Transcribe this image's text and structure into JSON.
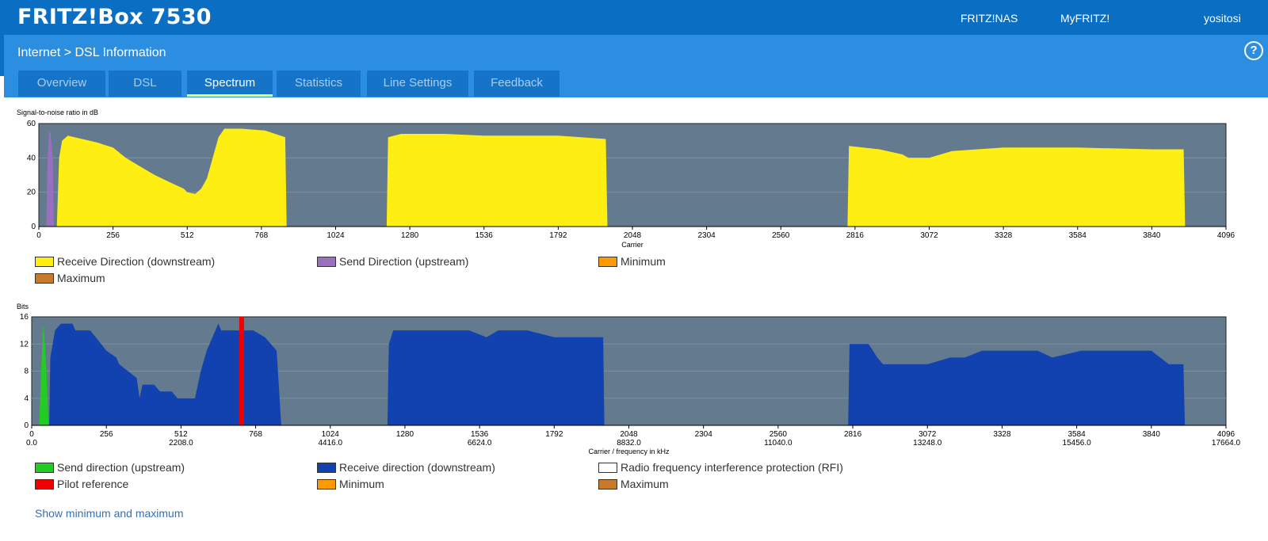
{
  "header": {
    "brand": "FRITZ!Box 7530",
    "links": [
      "FRITZ!NAS",
      "MyFRITZ!",
      "yositosi"
    ],
    "breadcrumb": "Internet > DSL Information",
    "help_icon": "?"
  },
  "tabs": [
    {
      "label": "Overview",
      "active": false
    },
    {
      "label": "DSL",
      "active": false
    },
    {
      "label": "Spectrum",
      "active": true
    },
    {
      "label": "Statistics",
      "active": false
    },
    {
      "label": "Line Settings",
      "active": false
    },
    {
      "label": "Feedback",
      "active": false
    }
  ],
  "colors": {
    "plot_bg": "#637a8f",
    "downstream_snr": "#ffee11",
    "upstream_snr": "#9b6fc0",
    "downstream_bits": "#1242b0",
    "upstream_bits": "#22cc22",
    "pilot": "#ee0000",
    "minimum": "#ff9900",
    "maximum": "#c87a2a"
  },
  "chart_data": [
    {
      "type": "area",
      "ylabel": "Signal-to-noise ratio in dB",
      "xlabel": "Carrier",
      "xlim": [
        0,
        4096
      ],
      "ylim": [
        0,
        60
      ],
      "y_ticks": [
        0,
        20,
        40,
        60
      ],
      "x_ticks": [
        0,
        256,
        512,
        768,
        1024,
        1280,
        1536,
        1792,
        2048,
        2304,
        2560,
        2816,
        3072,
        3328,
        3584,
        3840,
        4096
      ],
      "series": [
        {
          "name": "Send Direction (upstream)",
          "color": "#9b6fc0",
          "points": [
            [
              26,
              0
            ],
            [
              30,
              40
            ],
            [
              36,
              55
            ],
            [
              40,
              55
            ],
            [
              48,
              40
            ],
            [
              52,
              0
            ]
          ]
        },
        {
          "name": "Receive Direction (downstream)",
          "color": "#ffee11",
          "points": [
            [
              62,
              0
            ],
            [
              70,
              40
            ],
            [
              80,
              50
            ],
            [
              100,
              53
            ],
            [
              150,
              51
            ],
            [
              200,
              49
            ],
            [
              256,
              46
            ],
            [
              300,
              40
            ],
            [
              350,
              35
            ],
            [
              400,
              30
            ],
            [
              450,
              26
            ],
            [
              500,
              22
            ],
            [
              512,
              20
            ],
            [
              540,
              19
            ],
            [
              560,
              22
            ],
            [
              580,
              28
            ],
            [
              600,
              40
            ],
            [
              620,
              52
            ],
            [
              640,
              57
            ],
            [
              700,
              57
            ],
            [
              780,
              56
            ],
            [
              850,
              52
            ],
            [
              855,
              0
            ],
            [
              1200,
              0
            ],
            [
              1205,
              52
            ],
            [
              1250,
              54
            ],
            [
              1400,
              54
            ],
            [
              1536,
              53
            ],
            [
              1792,
              53
            ],
            [
              1956,
              51
            ],
            [
              1962,
              0
            ],
            [
              2790,
              0
            ],
            [
              2795,
              47
            ],
            [
              2900,
              45
            ],
            [
              2980,
              42
            ],
            [
              3000,
              40
            ],
            [
              3072,
              40
            ],
            [
              3150,
              44
            ],
            [
              3328,
              46
            ],
            [
              3584,
              46
            ],
            [
              3840,
              45
            ],
            [
              3950,
              45
            ],
            [
              3955,
              0
            ]
          ]
        }
      ],
      "legend": [
        {
          "label": "Receive Direction (downstream)",
          "color": "#ffee11"
        },
        {
          "label": "Send Direction (upstream)",
          "color": "#9b6fc0"
        },
        {
          "label": "Minimum",
          "color": "#ff9900"
        },
        {
          "label": "Maximum",
          "color": "#c87a2a"
        }
      ]
    },
    {
      "type": "area",
      "ylabel": "Bits",
      "xlabel": "Carrier / frequency in kHz",
      "xlim": [
        0,
        4096
      ],
      "ylim": [
        0,
        16
      ],
      "y_ticks": [
        0,
        4,
        8,
        12,
        16
      ],
      "x_ticks": [
        0,
        256,
        512,
        768,
        1024,
        1280,
        1536,
        1792,
        2048,
        2304,
        2560,
        2816,
        3072,
        3328,
        3584,
        3840,
        4096
      ],
      "x_freq_ticks": [
        {
          "carrier": 0,
          "label": "0.0"
        },
        {
          "carrier": 512,
          "label": "2208.0"
        },
        {
          "carrier": 1024,
          "label": "4416.0"
        },
        {
          "carrier": 1536,
          "label": "6624.0"
        },
        {
          "carrier": 2048,
          "label": "8832.0"
        },
        {
          "carrier": 2560,
          "label": "11040.0"
        },
        {
          "carrier": 3072,
          "label": "13248.0"
        },
        {
          "carrier": 3584,
          "label": "15456.0"
        },
        {
          "carrier": 4096,
          "label": "17664.0"
        }
      ],
      "pilot_carrier": 720,
      "series": [
        {
          "name": "Send direction (upstream)",
          "color": "#22cc22",
          "points": [
            [
              26,
              0
            ],
            [
              32,
              8
            ],
            [
              40,
              15
            ],
            [
              48,
              10
            ],
            [
              58,
              0
            ]
          ]
        },
        {
          "name": "Receive direction (downstream)",
          "color": "#1242b0",
          "points": [
            [
              60,
              0
            ],
            [
              64,
              10
            ],
            [
              80,
              14
            ],
            [
              100,
              15
            ],
            [
              140,
              15
            ],
            [
              150,
              14
            ],
            [
              200,
              14
            ],
            [
              220,
              13
            ],
            [
              256,
              11
            ],
            [
              290,
              10
            ],
            [
              300,
              9
            ],
            [
              330,
              8
            ],
            [
              360,
              7
            ],
            [
              370,
              4
            ],
            [
              380,
              6
            ],
            [
              420,
              6
            ],
            [
              440,
              5
            ],
            [
              480,
              5
            ],
            [
              500,
              4
            ],
            [
              560,
              4
            ],
            [
              580,
              8
            ],
            [
              600,
              11
            ],
            [
              620,
              13
            ],
            [
              640,
              15
            ],
            [
              650,
              14
            ],
            [
              700,
              14
            ],
            [
              720,
              14
            ],
            [
              760,
              14
            ],
            [
              800,
              13
            ],
            [
              840,
              11
            ],
            [
              856,
              0
            ],
            [
              1220,
              0
            ],
            [
              1225,
              12
            ],
            [
              1240,
              14
            ],
            [
              1500,
              14
            ],
            [
              1560,
              13
            ],
            [
              1600,
              14
            ],
            [
              1700,
              14
            ],
            [
              1792,
              13
            ],
            [
              1960,
              13
            ],
            [
              1964,
              0
            ],
            [
              2800,
              0
            ],
            [
              2805,
              12
            ],
            [
              2870,
              12
            ],
            [
              2900,
              10
            ],
            [
              2920,
              9
            ],
            [
              3000,
              9
            ],
            [
              3072,
              9
            ],
            [
              3150,
              10
            ],
            [
              3200,
              10
            ],
            [
              3260,
              11
            ],
            [
              3328,
              11
            ],
            [
              3450,
              11
            ],
            [
              3500,
              10
            ],
            [
              3600,
              11
            ],
            [
              3750,
              11
            ],
            [
              3840,
              11
            ],
            [
              3900,
              9
            ],
            [
              3950,
              9
            ],
            [
              3955,
              0
            ]
          ]
        }
      ],
      "legend": [
        {
          "label": "Send direction (upstream)",
          "color": "#22cc22"
        },
        {
          "label": "Receive direction (downstream)",
          "color": "#1242b0"
        },
        {
          "label": "Radio frequency interference protection (RFI)",
          "color": "#ffffff"
        },
        {
          "label": "Pilot reference",
          "color": "#ee0000"
        },
        {
          "label": "Minimum",
          "color": "#ff9900"
        },
        {
          "label": "Maximum",
          "color": "#c87a2a"
        }
      ]
    }
  ],
  "footer": {
    "show_min_max": "Show minimum and maximum"
  }
}
